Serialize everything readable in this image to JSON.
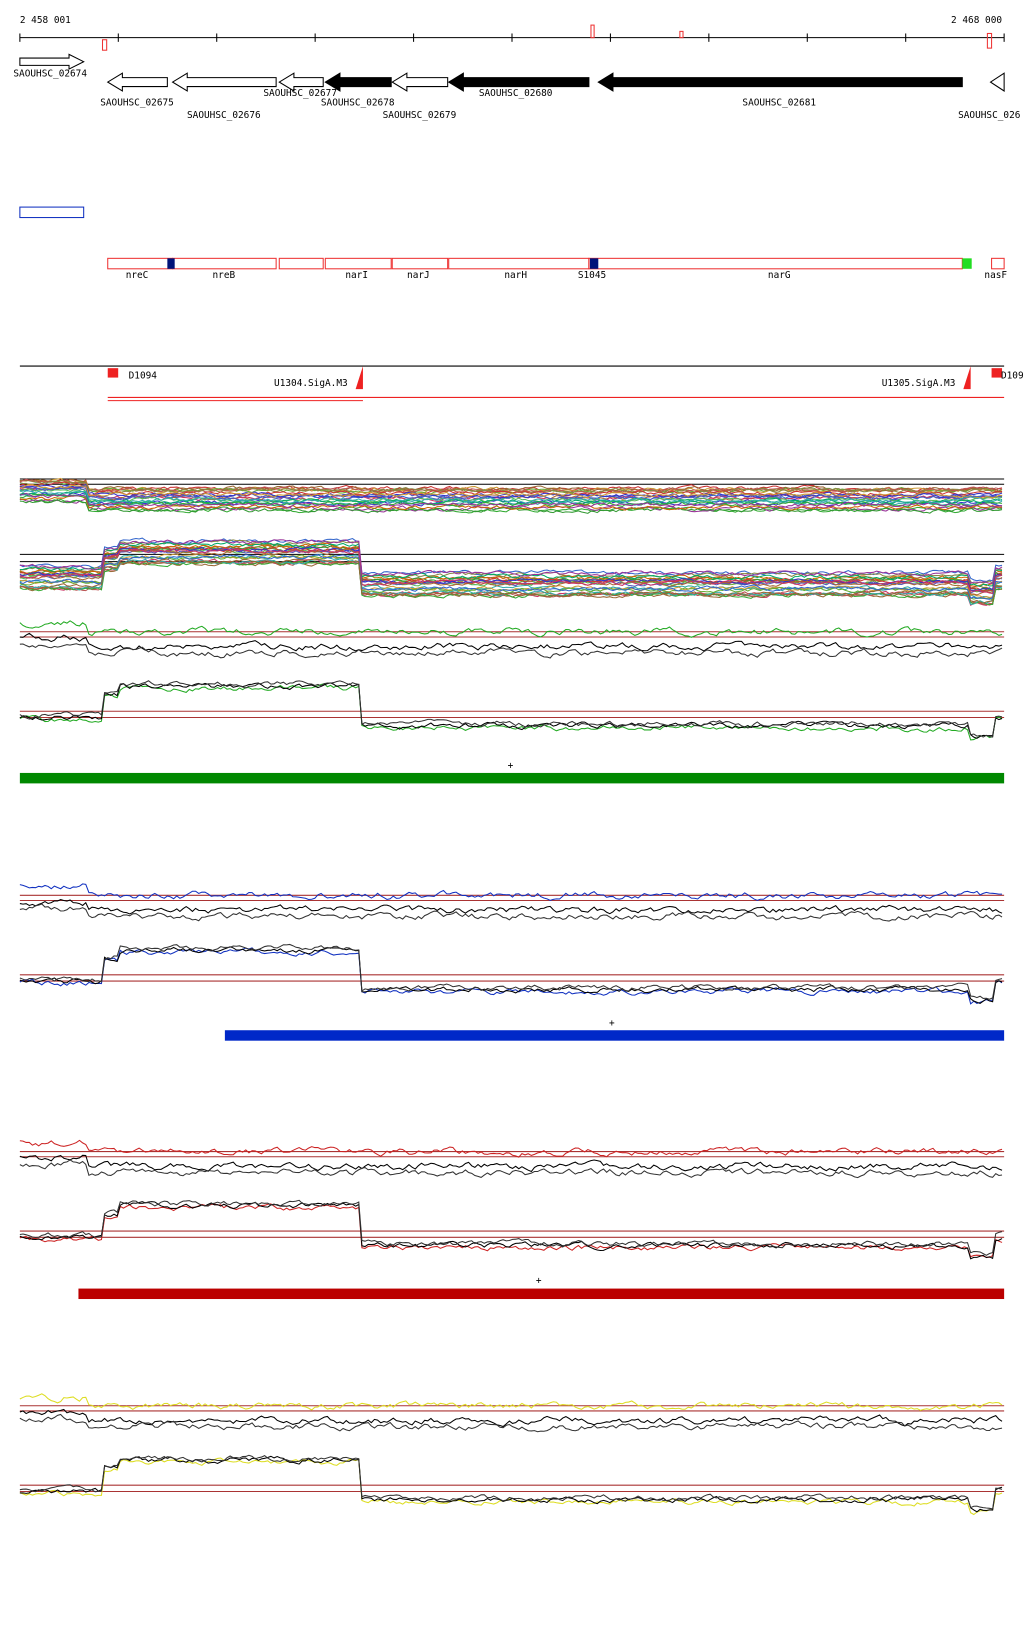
{
  "ruler": {
    "start": "2 458 001",
    "end": "2 468 000"
  },
  "genes": [
    "SAOUHSC_02674",
    "SAOUHSC_02675",
    "SAOUHSC_02676",
    "SAOUHSC_02677",
    "SAOUHSC_02678",
    "SAOUHSC_02679",
    "SAOUHSC_02680",
    "SAOUHSC_02681",
    "SAOUHSC_026"
  ],
  "features": [
    "nreC",
    "nreB",
    "narI",
    "narJ",
    "narH",
    "S1045",
    "narG",
    "nasF"
  ],
  "sites": [
    "D1094",
    "U1304.SigA.M3",
    "U1305.SigA.M3",
    "D109"
  ],
  "strands": [
    "+",
    "+",
    "+"
  ]
}
